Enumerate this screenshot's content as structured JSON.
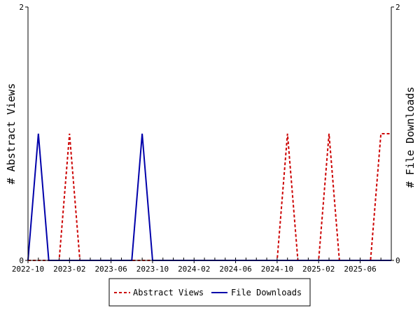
{
  "chart_data": {
    "type": "line",
    "ylabel_left": "# Abstract Views",
    "ylabel_right": "# File Downloads",
    "y_left_range": [
      0,
      2
    ],
    "y_right_range": [
      0,
      2
    ],
    "y_left_ticks": [
      "0",
      "2"
    ],
    "y_right_ticks": [
      "0",
      "2"
    ],
    "x_range": [
      "2022-10",
      "2025-09"
    ],
    "x_ticks": [
      "2022-10",
      "2023-02",
      "2023-06",
      "2023-10",
      "2024-02",
      "2024-06",
      "2024-10",
      "2025-02",
      "2025-06"
    ],
    "x": [
      "2022-10",
      "2022-11",
      "2022-12",
      "2023-01",
      "2023-02",
      "2023-03",
      "2023-04",
      "2023-05",
      "2023-06",
      "2023-07",
      "2023-08",
      "2023-09",
      "2023-10",
      "2023-11",
      "2023-12",
      "2024-01",
      "2024-02",
      "2024-03",
      "2024-04",
      "2024-05",
      "2024-06",
      "2024-07",
      "2024-08",
      "2024-09",
      "2024-10",
      "2024-11",
      "2024-12",
      "2025-01",
      "2025-02",
      "2025-03",
      "2025-04",
      "2025-05",
      "2025-06",
      "2025-07",
      "2025-08",
      "2025-09"
    ],
    "series": [
      {
        "name": "Abstract Views",
        "axis": "left",
        "style": "dashed",
        "color": "#cc0000",
        "values": [
          0,
          0,
          0,
          0,
          1,
          0,
          0,
          0,
          0,
          0,
          0,
          0,
          0,
          0,
          0,
          0,
          0,
          0,
          0,
          0,
          0,
          0,
          0,
          0,
          0,
          1,
          0,
          0,
          0,
          1,
          0,
          0,
          0,
          0,
          1,
          1
        ]
      },
      {
        "name": "File Downloads",
        "axis": "right",
        "style": "solid",
        "color": "#0000aa",
        "values": [
          0,
          1,
          0,
          0,
          0,
          0,
          0,
          0,
          0,
          0,
          0,
          1,
          0,
          0,
          0,
          0,
          0,
          0,
          0,
          0,
          0,
          0,
          0,
          0,
          0,
          0,
          0,
          0,
          0,
          0,
          0,
          0,
          0,
          0,
          0,
          0
        ]
      }
    ],
    "legend_position": "bottom"
  }
}
